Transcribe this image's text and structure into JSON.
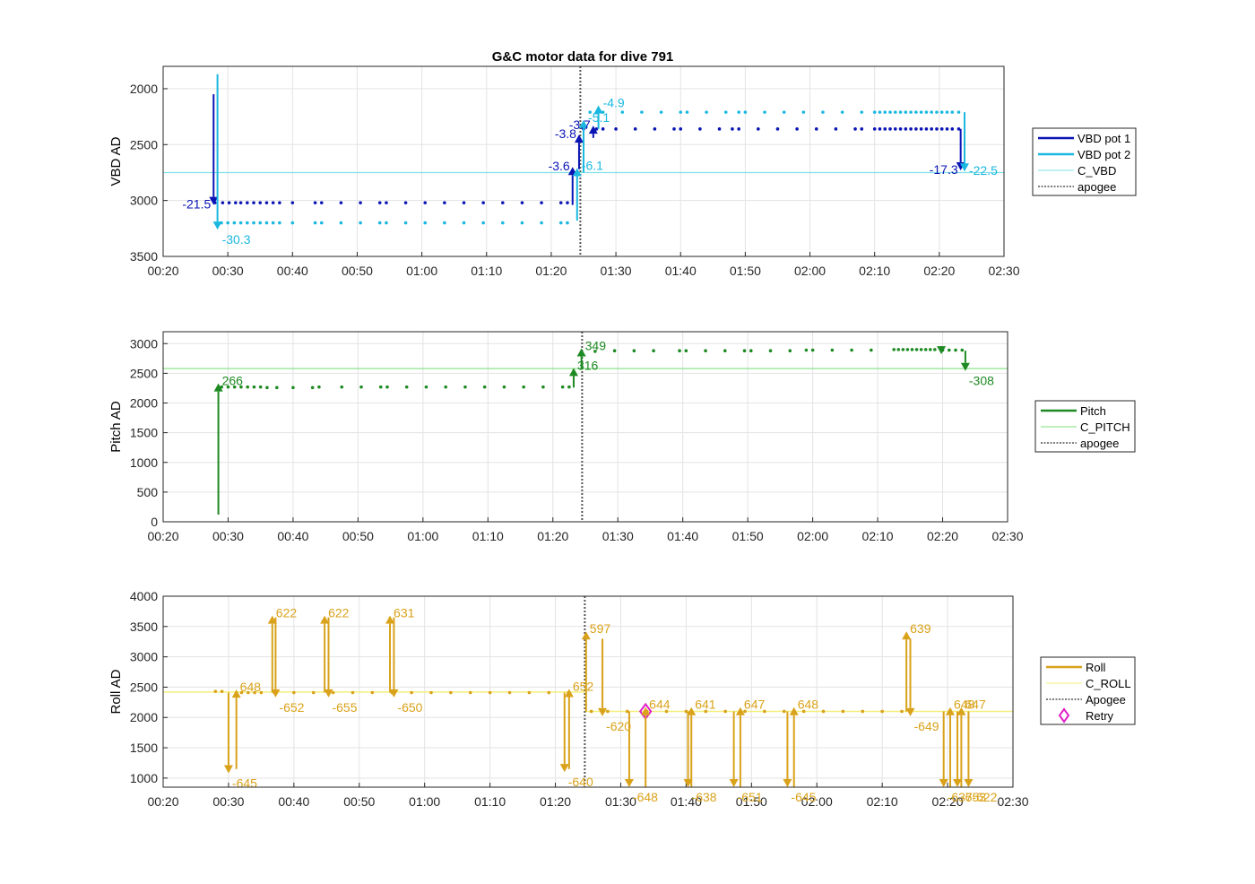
{
  "figure_title": "G&C motor data for dive 791",
  "chart_data": [
    {
      "type": "line",
      "ylabel": "VBD AD",
      "xlabel": "",
      "x_ticks": [
        "00:20",
        "00:30",
        "00:40",
        "00:50",
        "01:00",
        "01:10",
        "01:20",
        "01:30",
        "01:40",
        "01:50",
        "02:00",
        "02:10",
        "02:20",
        "02:30"
      ],
      "xlim_minutes": [
        20,
        150
      ],
      "ylim": [
        3500,
        1800
      ],
      "y_reversed": true,
      "y_ticks": [
        2000,
        2500,
        3000,
        3500
      ],
      "grid": true,
      "legend_position": "right",
      "legend": [
        "VBD pot 1",
        "VBD pot 2",
        "C_VBD",
        "apogee"
      ],
      "colors": {
        "VBD pot 1": "#0a14b4",
        "VBD pot 2": "#1ab8e0",
        "C_VBD": "#7fe0ea",
        "apogee": "#555555"
      },
      "reference_lines": [
        {
          "name": "C_VBD",
          "y": 2750
        },
        {
          "name": "apogee",
          "x_minutes": 84.5
        }
      ],
      "series": [
        {
          "name": "VBD pot 1",
          "dots": {
            "minutes": [
              28,
              29.2,
              30.2,
              31.2,
              32,
              33,
              34,
              35,
              36,
              37,
              38,
              40,
              43.5,
              44.5,
              47.5,
              50.5,
              53.5,
              54.5,
              57.5,
              60.5,
              63.5,
              66.5,
              69.5,
              72.5,
              75.5,
              78.5,
              81.5,
              82.5,
              85,
              87,
              88,
              90,
              93,
              96,
              99,
              100,
              103,
              106,
              108,
              109,
              112,
              115,
              118,
              121,
              124,
              127,
              128,
              130,
              130.8,
              131.6,
              132.4,
              133.2,
              134,
              134.8,
              135.6,
              136.4,
              137.2,
              138,
              138.8,
              139.6,
              140.4,
              141.2,
              142,
              143
            ],
            "value": [
              3020,
              3020,
              3020,
              3020,
              3020,
              3020,
              3020,
              3020,
              3020,
              3020,
              3020,
              3020,
              3020,
              3020,
              3020,
              3020,
              3020,
              3020,
              3020,
              3020,
              3020,
              3020,
              3020,
              3020,
              3020,
              3020,
              3020,
              3020,
              2360,
              2360,
              2360,
              2360,
              2360,
              2360,
              2360,
              2360,
              2360,
              2360,
              2360,
              2360,
              2360,
              2360,
              2360,
              2360,
              2360,
              2360,
              2360,
              2360,
              2360,
              2360,
              2360,
              2360,
              2360,
              2360,
              2360,
              2360,
              2360,
              2360,
              2360,
              2360,
              2360,
              2360,
              2360,
              2360
            ]
          }
        },
        {
          "name": "VBD pot 2",
          "dots": {
            "minutes": [
              29,
              30,
              31,
              32,
              33,
              34,
              35,
              36,
              37,
              38,
              40,
              43.5,
              44.5,
              47.5,
              50.5,
              53.5,
              54.5,
              57.5,
              60.5,
              63.5,
              66.5,
              69.5,
              72.5,
              75.5,
              78.5,
              81.5,
              82.5,
              86,
              88,
              91,
              94,
              97,
              100,
              101,
              104,
              107,
              109,
              110,
              113,
              116,
              119,
              122,
              125,
              128,
              130,
              130.8,
              131.6,
              132.4,
              133.2,
              134,
              134.8,
              135.6,
              136.4,
              137.2,
              138,
              138.8,
              139.6,
              140.4,
              141.2,
              142,
              143
            ],
            "value": [
              3200,
              3200,
              3200,
              3200,
              3200,
              3200,
              3200,
              3200,
              3200,
              3200,
              3200,
              3200,
              3200,
              3200,
              3200,
              3200,
              3200,
              3200,
              3200,
              3200,
              3200,
              3200,
              3200,
              3200,
              3200,
              3200,
              3200,
              2210,
              2210,
              2210,
              2210,
              2210,
              2210,
              2210,
              2210,
              2210,
              2210,
              2210,
              2210,
              2210,
              2210,
              2210,
              2210,
              2210,
              2210,
              2210,
              2210,
              2210,
              2210,
              2210,
              2210,
              2210,
              2210,
              2210,
              2210,
              2210,
              2210,
              2210,
              2210,
              2210,
              2210
            ]
          }
        }
      ],
      "motor_moves": [
        {
          "series": "VBD pot 1",
          "minute": 27.8,
          "from": 2050,
          "to": 3040,
          "label": "-21.5"
        },
        {
          "series": "VBD pot 2",
          "minute": 28.4,
          "from": 1870,
          "to": 3260,
          "label": "-30.3"
        },
        {
          "series": "VBD pot 1",
          "minute": 83.3,
          "from": 3040,
          "to": 2700,
          "label": "-3.6"
        },
        {
          "series": "VBD pot 2",
          "minute": 84.0,
          "from": 3180,
          "to": 2710,
          "label": "-6.1"
        },
        {
          "series": "VBD pot 1",
          "minute": 84.3,
          "from": 2720,
          "to": 2410,
          "label": "-3.8"
        },
        {
          "series": "VBD pot 2",
          "minute": 85.0,
          "from": 2750,
          "to": 2280,
          "label": "-5.1"
        },
        {
          "series": "VBD pot 1",
          "minute": 86.5,
          "from": 2440,
          "to": 2330,
          "label": "-3.7"
        },
        {
          "series": "VBD pot 2",
          "minute": 87.3,
          "from": 2360,
          "to": 2150,
          "label": "-4.9"
        },
        {
          "series": "VBD pot 1",
          "minute": 143.3,
          "from": 2360,
          "to": 2730,
          "label": "-17.3"
        },
        {
          "series": "VBD pot 2",
          "minute": 143.9,
          "from": 2210,
          "to": 2740,
          "label": "-22.5"
        }
      ]
    },
    {
      "type": "line",
      "ylabel": "Pitch AD",
      "xlabel": "",
      "x_ticks": [
        "00:20",
        "00:30",
        "00:40",
        "00:50",
        "01:00",
        "01:10",
        "01:20",
        "01:30",
        "01:40",
        "01:50",
        "02:00",
        "02:10",
        "02:20",
        "02:30"
      ],
      "xlim_minutes": [
        20,
        150
      ],
      "ylim": [
        0,
        3200
      ],
      "y_ticks": [
        0,
        500,
        1000,
        1500,
        2000,
        2500,
        3000
      ],
      "grid": true,
      "legend_position": "right",
      "legend": [
        "Pitch",
        "C_PITCH",
        "apogee"
      ],
      "colors": {
        "Pitch": "#1d8a22",
        "C_PITCH": "#7ee07e",
        "apogee": "#555555"
      },
      "reference_lines": [
        {
          "name": "C_PITCH",
          "y": 2580
        },
        {
          "name": "apogee",
          "x_minutes": 84.5
        }
      ],
      "series": [
        {
          "name": "Pitch",
          "dots": {
            "minutes": [
              29,
              30,
              31,
              32,
              33,
              34,
              35,
              36,
              37.5,
              40,
              43,
              44,
              47.5,
              50.5,
              53.5,
              54.5,
              57.5,
              60.5,
              63.5,
              66.5,
              69.5,
              72.5,
              75.5,
              78.5,
              81.5,
              82.5,
              86.5,
              89.5,
              92.5,
              95.5,
              99.5,
              100.5,
              103.5,
              106.5,
              109.5,
              110.5,
              113.5,
              116.5,
              119,
              120,
              123,
              126,
              129,
              132.5,
              133.2,
              133.9,
              134.6,
              135.3,
              136,
              136.7,
              137.4,
              138.1,
              138.8,
              140,
              141,
              142,
              143
            ],
            "value": [
              2270,
              2270,
              2270,
              2270,
              2270,
              2270,
              2270,
              2260,
              2260,
              2260,
              2260,
              2270,
              2270,
              2270,
              2270,
              2270,
              2270,
              2270,
              2270,
              2270,
              2270,
              2270,
              2270,
              2270,
              2270,
              2270,
              2870,
              2880,
              2880,
              2880,
              2880,
              2880,
              2880,
              2880,
              2880,
              2880,
              2880,
              2880,
              2890,
              2890,
              2890,
              2890,
              2890,
              2900,
              2900,
              2900,
              2900,
              2900,
              2900,
              2900,
              2900,
              2900,
              2900,
              2890,
              2890,
              2890,
              2890
            ]
          }
        }
      ],
      "motor_moves": [
        {
          "series": "Pitch",
          "minute": 28.5,
          "from": 120,
          "to": 2330,
          "label": "266"
        },
        {
          "series": "Pitch",
          "minute": 83.2,
          "from": 2260,
          "to": 2590,
          "label": "316"
        },
        {
          "series": "Pitch",
          "minute": 84.4,
          "from": 2560,
          "to": 2920,
          "label": "349"
        },
        {
          "series": "Pitch",
          "minute": 139.8,
          "from": 2890,
          "to": 2820,
          "label": ""
        },
        {
          "series": "Pitch",
          "minute": 143.5,
          "from": 2880,
          "to": 2540,
          "label": "-308"
        }
      ]
    },
    {
      "type": "line",
      "ylabel": "Roll AD",
      "xlabel": "",
      "x_ticks": [
        "00:20",
        "00:30",
        "00:40",
        "00:50",
        "01:00",
        "01:10",
        "01:20",
        "01:30",
        "01:40",
        "01:50",
        "02:00",
        "02:10",
        "02:20",
        "02:30"
      ],
      "xlim_minutes": [
        20,
        150
      ],
      "ylim": [
        850,
        4000
      ],
      "y_ticks": [
        1000,
        1500,
        2000,
        2500,
        3000,
        3500,
        4000
      ],
      "grid": true,
      "legend_position": "right",
      "legend": [
        "Roll",
        "C_ROLL",
        "Apogee",
        "Retry"
      ],
      "colors": {
        "Roll": "#d9a21a",
        "C_ROLL": "#f4ef7a",
        "Apogee": "#555555",
        "Retry": "#e020c8"
      },
      "reference_lines": [
        {
          "name": "C_ROLL",
          "y": 2420,
          "y_after_apogee": 2100
        },
        {
          "name": "Apogee",
          "x_minutes": 84.5
        }
      ],
      "series": [
        {
          "name": "Roll",
          "dots": {
            "minutes": [
              28,
              29,
              32,
              33,
              34,
              35,
              37,
              40,
              43,
              46,
              49,
              52,
              55,
              58,
              61,
              64,
              67,
              70,
              73,
              76,
              79,
              82,
              85.5,
              88,
              91,
              94,
              97,
              100,
              103,
              106,
              109,
              112,
              115,
              118,
              121,
              124,
              127,
              130,
              133
            ],
            "value": [
              2430,
              2430,
              2410,
              2410,
              2410,
              2410,
              2410,
              2410,
              2410,
              2410,
              2410,
              2410,
              2410,
              2410,
              2410,
              2410,
              2410,
              2410,
              2410,
              2410,
              2410,
              2410,
              2100,
              2100,
              2100,
              2100,
              2100,
              2100,
              2100,
              2100,
              2100,
              2100,
              2100,
              2100,
              2100,
              2100,
              2100,
              2100,
              2100
            ]
          }
        },
        {
          "name": "Retry",
          "markers": {
            "minutes": [
              93.8
            ],
            "value": [
              2100
            ]
          }
        }
      ],
      "motor_moves": [
        {
          "series": "Roll",
          "minute": 30.0,
          "from": 2410,
          "to": 1080,
          "label": "-645"
        },
        {
          "series": "Roll",
          "minute": 31.2,
          "from": 1150,
          "to": 2460,
          "label": "648"
        },
        {
          "series": "Roll",
          "minute": 36.7,
          "from": 2410,
          "to": 3680,
          "label": "622"
        },
        {
          "series": "Roll",
          "minute": 37.2,
          "from": 3650,
          "to": 2330,
          "label": "-652"
        },
        {
          "series": "Roll",
          "minute": 44.7,
          "from": 2410,
          "to": 3680,
          "label": "622"
        },
        {
          "series": "Roll",
          "minute": 45.3,
          "from": 3650,
          "to": 2330,
          "label": "-655"
        },
        {
          "series": "Roll",
          "minute": 54.7,
          "from": 2410,
          "to": 3680,
          "label": "631"
        },
        {
          "series": "Roll",
          "minute": 55.3,
          "from": 3650,
          "to": 2330,
          "label": "-650"
        },
        {
          "series": "Roll",
          "minute": 81.4,
          "from": 2410,
          "to": 1100,
          "label": "-640"
        },
        {
          "series": "Roll",
          "minute": 82.1,
          "from": 1150,
          "to": 2470,
          "label": "652"
        },
        {
          "series": "Roll",
          "minute": 84.7,
          "from": 2100,
          "to": 3420,
          "label": "597"
        },
        {
          "series": "Roll",
          "minute": 87.2,
          "from": 3300,
          "to": 2020,
          "label": "-620"
        },
        {
          "series": "Roll",
          "minute": 91.3,
          "from": 2100,
          "to": 850,
          "label": "-648"
        },
        {
          "series": "Roll",
          "minute": 93.8,
          "from": 850,
          "to": 2170,
          "label": "644"
        },
        {
          "series": "Roll",
          "minute": 100.3,
          "from": 2100,
          "to": 850,
          "label": "-638"
        },
        {
          "series": "Roll",
          "minute": 100.8,
          "from": 850,
          "to": 2170,
          "label": "641"
        },
        {
          "series": "Roll",
          "minute": 107.3,
          "from": 2100,
          "to": 850,
          "label": "-651"
        },
        {
          "series": "Roll",
          "minute": 108.3,
          "from": 850,
          "to": 2170,
          "label": "647"
        },
        {
          "series": "Roll",
          "minute": 115.5,
          "from": 2100,
          "to": 850,
          "label": "-645"
        },
        {
          "series": "Roll",
          "minute": 116.5,
          "from": 850,
          "to": 2170,
          "label": "648"
        },
        {
          "series": "Roll",
          "minute": 133.7,
          "from": 2100,
          "to": 3420,
          "label": "639"
        },
        {
          "series": "Roll",
          "minute": 134.3,
          "from": 3300,
          "to": 2020,
          "label": "-649"
        },
        {
          "series": "Roll",
          "minute": 139.4,
          "from": 2100,
          "to": 850,
          "label": "-637"
        },
        {
          "series": "Roll",
          "minute": 140.4,
          "from": 850,
          "to": 2170,
          "label": "648"
        },
        {
          "series": "Roll",
          "minute": 141.5,
          "from": 2100,
          "to": 850,
          "label": "-653"
        },
        {
          "series": "Roll",
          "minute": 142.1,
          "from": 850,
          "to": 2170,
          "label": "647"
        },
        {
          "series": "Roll",
          "minute": 143.2,
          "from": 2100,
          "to": 850,
          "label": "-622"
        }
      ]
    }
  ]
}
